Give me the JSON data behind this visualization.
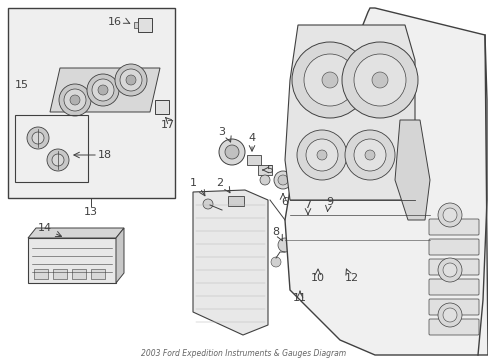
{
  "bg_color": "#ffffff",
  "line_color": "#404040",
  "fig_width": 4.89,
  "fig_height": 3.6,
  "dpi": 100,
  "title": "2003 Ford Expedition Instruments & Gauges Diagram"
}
